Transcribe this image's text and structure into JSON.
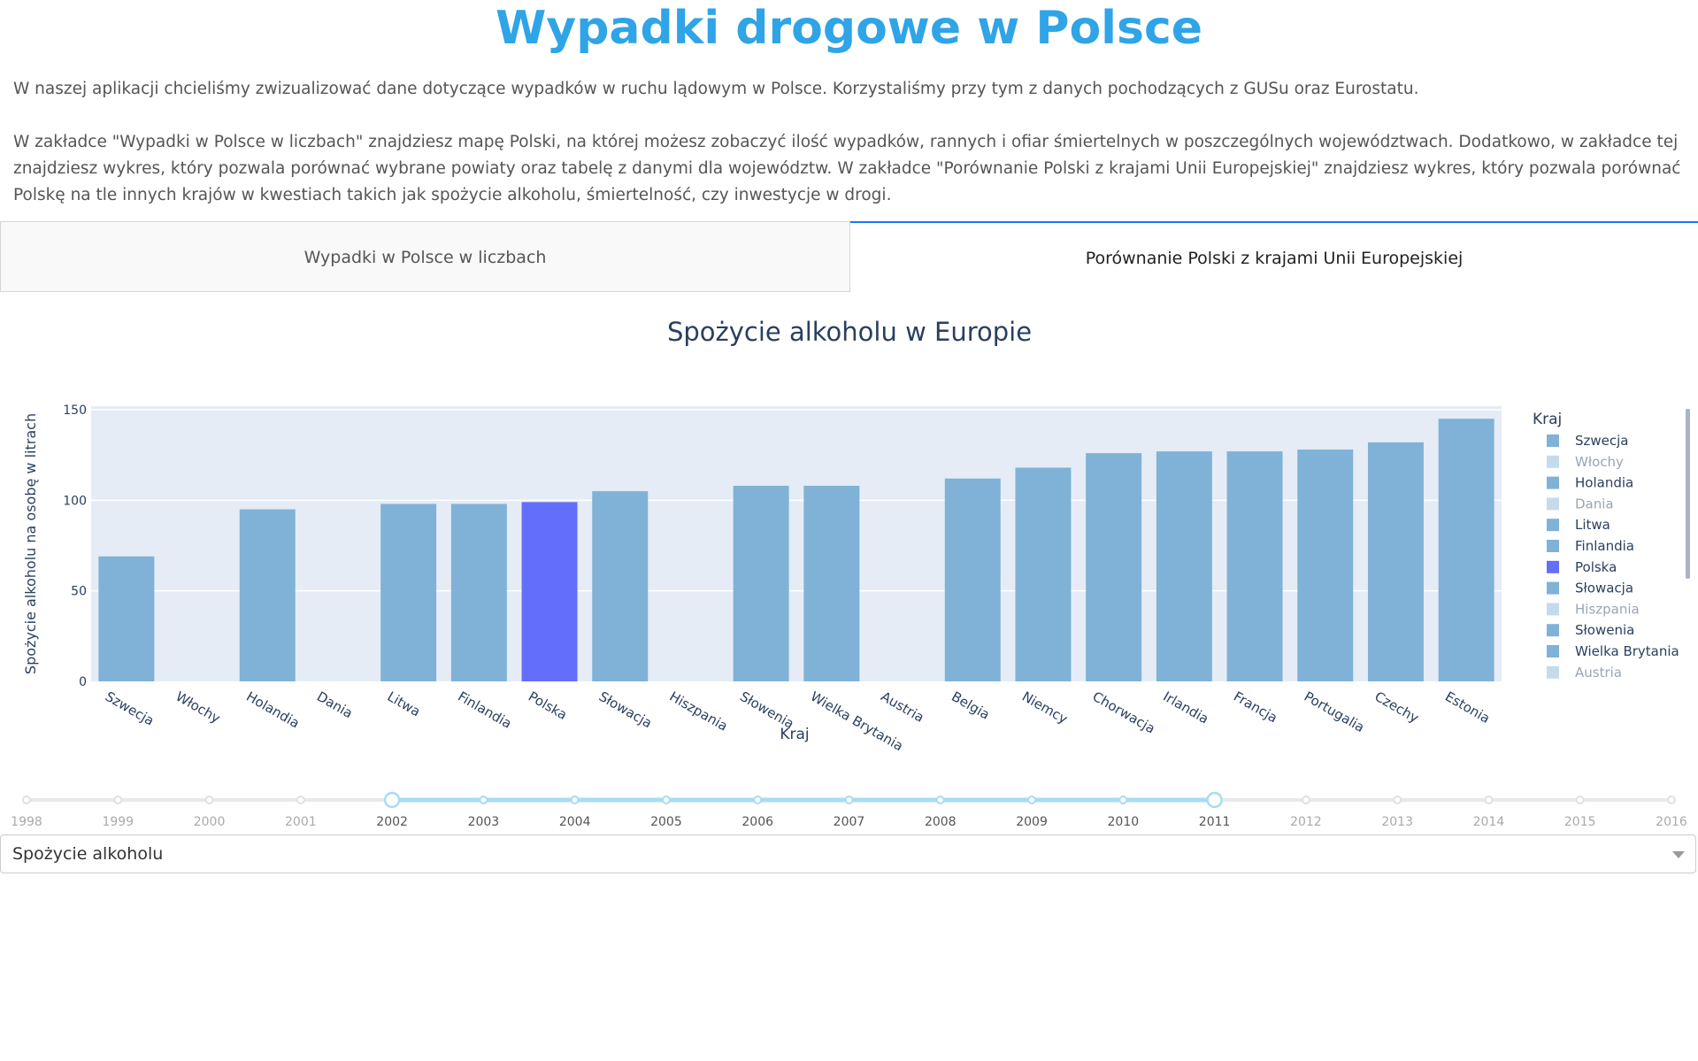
{
  "header": {
    "title": "Wypadki drogowe w Polsce",
    "intro_1": "W naszej aplikacji chcieliśmy zwizualizować dane dotyczące wypadków w ruchu lądowym w Polsce. Korzystaliśmy przy tym z danych pochodzących z GUSu oraz Eurostatu.",
    "intro_2": "W zakładce \"Wypadki w Polsce w liczbach\" znajdziesz mapę Polski, na której możesz zobaczyć ilość wypadków, rannych i ofiar śmiertelnych w poszczególnych województwach. Dodatkowo, w zakładce tej znajdziesz wykres, który pozwala porównać wybrane powiaty oraz tabelę z danymi dla województw. W zakładce \"Porównanie Polski z krajami Unii Europejskiej\" znajdziesz wykres, który pozwala porównać Polskę na tle innych krajów w kwestiach takich jak spożycie alkoholu, śmiertelność, czy inwestycje w drogi."
  },
  "tabs": [
    {
      "label": "Wypadki w Polsce w liczbach",
      "selected": false
    },
    {
      "label": "Porównanie Polski z krajami Unii Europejskiej",
      "selected": true
    }
  ],
  "colors": {
    "bar": "#7fb2d6",
    "bar_highlight": "#636efa",
    "plot_bg": "#e5ecf6",
    "legend_disabled": "#c5dbeb",
    "title": "#2fa4e7",
    "slider_active": "#a6dcf5"
  },
  "chart_data": {
    "type": "bar",
    "title": "Spożycie alkoholu w Europie",
    "xlabel": "Kraj",
    "ylabel": "Spożycie alkoholu na osobę w litrach",
    "ylim": [
      0,
      150
    ],
    "yticks": [
      0,
      50,
      100,
      150
    ],
    "grid": true,
    "legend_title": "Kraj",
    "legend_position": "right",
    "categories": [
      "Szwecja",
      "Włochy",
      "Holandia",
      "Dania",
      "Litwa",
      "Finlandia",
      "Polska",
      "Słowacja",
      "Hiszpania",
      "Słowenia",
      "Wielka Brytania",
      "Austria",
      "Belgia",
      "Niemcy",
      "Chorwacja",
      "Irlandia",
      "Francja",
      "Portugalia",
      "Czechy",
      "Estonia"
    ],
    "values": [
      69,
      null,
      95,
      null,
      98,
      98,
      99,
      105,
      null,
      108,
      108,
      null,
      112,
      118,
      126,
      127,
      127,
      128,
      132,
      145
    ],
    "highlight": "Polska",
    "legend_items": [
      {
        "label": "Szwecja",
        "enabled": true
      },
      {
        "label": "Włochy",
        "enabled": false
      },
      {
        "label": "Holandia",
        "enabled": true
      },
      {
        "label": "Dania",
        "enabled": false
      },
      {
        "label": "Litwa",
        "enabled": true
      },
      {
        "label": "Finlandia",
        "enabled": true
      },
      {
        "label": "Polska",
        "enabled": true
      },
      {
        "label": "Słowacja",
        "enabled": true
      },
      {
        "label": "Hiszpania",
        "enabled": false
      },
      {
        "label": "Słowenia",
        "enabled": true
      },
      {
        "label": "Wielka Brytania",
        "enabled": true
      },
      {
        "label": "Austria",
        "enabled": false
      }
    ]
  },
  "year_slider": {
    "years": [
      "1998",
      "1999",
      "2000",
      "2001",
      "2002",
      "2003",
      "2004",
      "2005",
      "2006",
      "2007",
      "2008",
      "2009",
      "2010",
      "2011",
      "2012",
      "2013",
      "2014",
      "2015",
      "2016"
    ],
    "range": [
      "2002",
      "2011"
    ]
  },
  "dropdown": {
    "selected": "Spożycie alkoholu"
  }
}
